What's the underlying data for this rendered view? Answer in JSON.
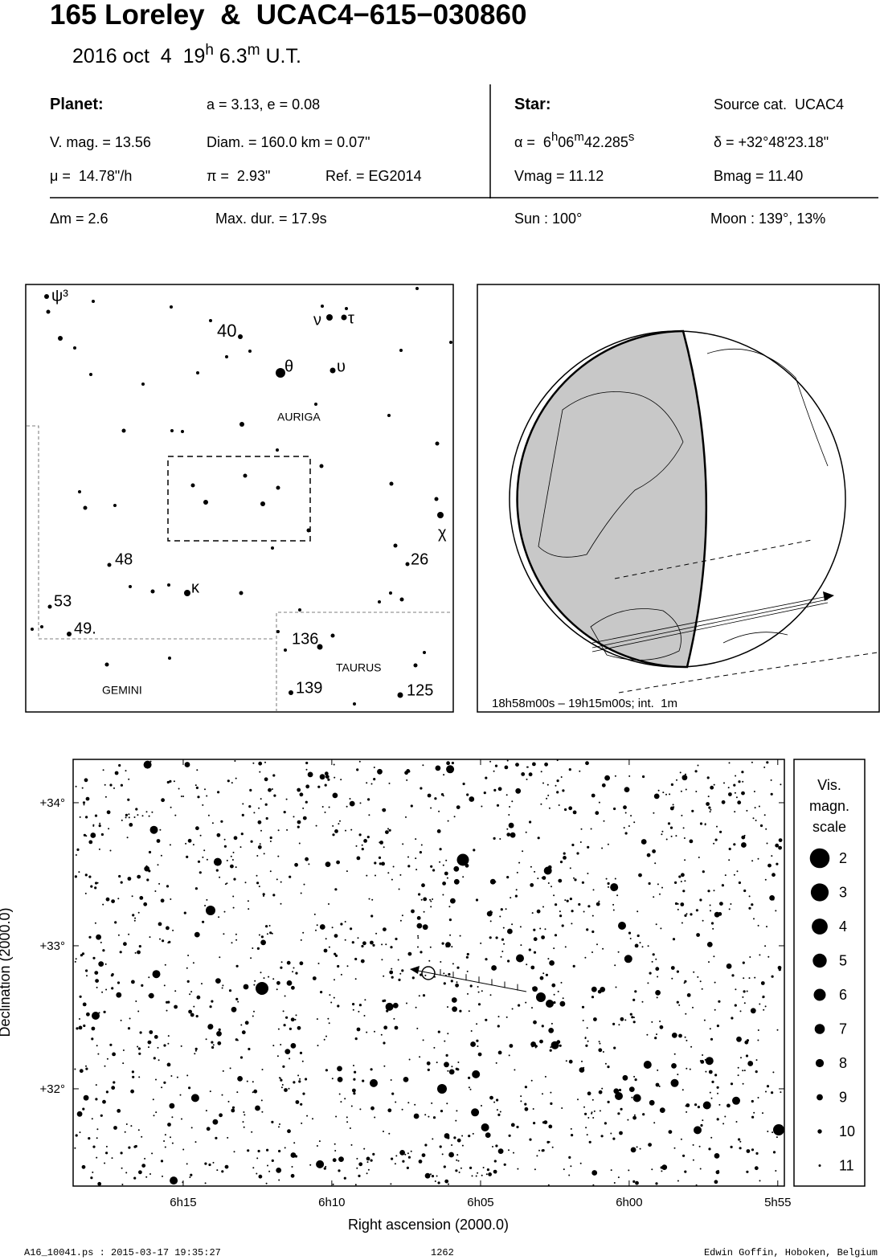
{
  "header": {
    "title": "165 Loreley  &  UCAC4−615−030860",
    "date": "2016 oct  4  19",
    "hour_unit": "h",
    "minutes": " 6.3",
    "minute_unit": "m",
    "time_scale": " U.T."
  },
  "planet": {
    "label": "Planet:",
    "orbit": "a = 3.13, e = 0.08",
    "vmag": "V. mag. = 13.56",
    "diam": "Diam. = 160.0 km = 0.07\"",
    "motion": "μ =  14.78\"/h",
    "parallax": "π =  2.93\"",
    "ref": "Ref. = EG2014"
  },
  "star": {
    "label": "Star:",
    "source": "Source cat.  UCAC4",
    "ra_prefix": "α =  6",
    "ra_h": "h",
    "ra_min": "06",
    "ra_m": "m",
    "ra_sec": "42.285",
    "ra_s": "s",
    "dec": "δ = +32°48'23.18\"",
    "vmag": "Vmag = 11.12",
    "bmag": "Bmag = 11.40"
  },
  "summary": {
    "delta_m": "Δm = 2.6",
    "max_dur": "Max. dur. = 17.9s",
    "sun": "Sun : 100°",
    "moon": "Moon : 139°, 13%"
  },
  "finder": {
    "labels": [
      "ψ³",
      "40",
      "ν",
      "τ",
      "θ",
      "υ",
      "AURIGA",
      "χ",
      "48",
      "26",
      "κ",
      "53",
      "49.",
      "136",
      "TAURUS",
      "139",
      "125",
      "GEMINI"
    ]
  },
  "globe": {
    "caption": "18h58m00s – 19h15m00s; int.  1m"
  },
  "star_chart": {
    "xlabel": "Right ascension (2000.0)",
    "ylabel": "Declination (2000.0)",
    "xlim": [
      6.3117,
      5.913
    ],
    "ylim": [
      31.32,
      34.303
    ],
    "xticks": [
      {
        "value": 6.25,
        "label": "6h15"
      },
      {
        "value": 6.1667,
        "label": "6h10"
      },
      {
        "value": 6.0833,
        "label": "6h05"
      },
      {
        "value": 6.0,
        "label": "6h00"
      },
      {
        "value": 5.9167,
        "label": "5h55"
      }
    ],
    "yticks": [
      {
        "value": 34,
        "label": "+34°"
      },
      {
        "value": 33,
        "label": "+33°"
      },
      {
        "value": 32,
        "label": "+32°"
      }
    ]
  },
  "legend": {
    "title_lines": [
      "Vis.",
      "magn.",
      "scale"
    ],
    "magnitudes": [
      2,
      3,
      4,
      5,
      6,
      7,
      8,
      9,
      10,
      11
    ]
  },
  "footer": {
    "file": "A16_10041.ps : 2015-03-17 19:35:27",
    "number": "1262",
    "author": "Edwin Goffin, Hoboken, Belgium"
  }
}
